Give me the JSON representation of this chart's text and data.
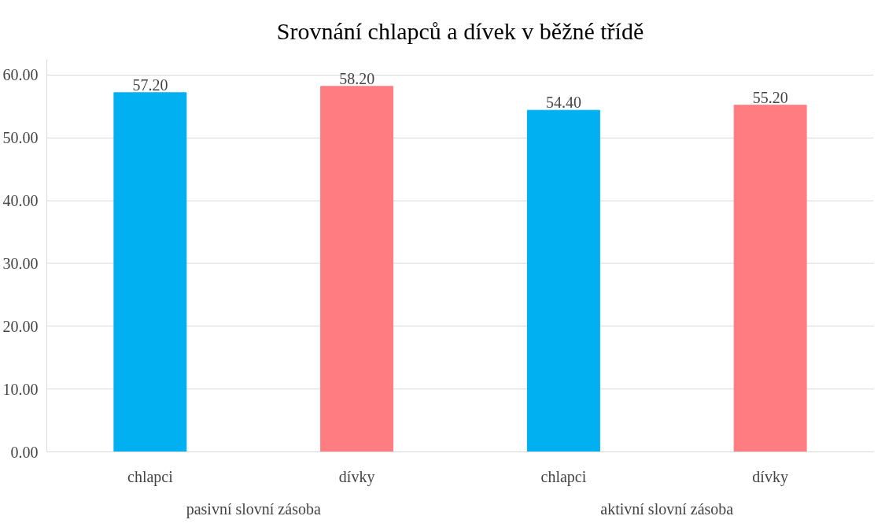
{
  "chart_data": {
    "type": "bar",
    "title": "Srovnání chlapců a dívek v běžné třídě",
    "categories": [
      "chlapci",
      "dívky",
      "chlapci",
      "dívky"
    ],
    "values": [
      57.2,
      58.2,
      54.4,
      55.2
    ],
    "colors": [
      "#00b0f0",
      "#ff7c80",
      "#00b0f0",
      "#ff7c80"
    ],
    "value_labels": [
      "57.20",
      "58.20",
      "54.40",
      "55.20"
    ],
    "annotations": [
      "pasivní slovní zásoba",
      "aktivní slovní zásoba"
    ],
    "ylim": [
      0,
      62.5
    ],
    "yticks": [
      {
        "value": 0,
        "label": "0.00"
      },
      {
        "value": 10,
        "label": "10.00"
      },
      {
        "value": 20,
        "label": "20.00"
      },
      {
        "value": 30,
        "label": "30.00"
      },
      {
        "value": 40,
        "label": "40.00"
      },
      {
        "value": 50,
        "label": "50.00"
      },
      {
        "value": 60,
        "label": "60.00"
      }
    ],
    "grid": "y"
  }
}
